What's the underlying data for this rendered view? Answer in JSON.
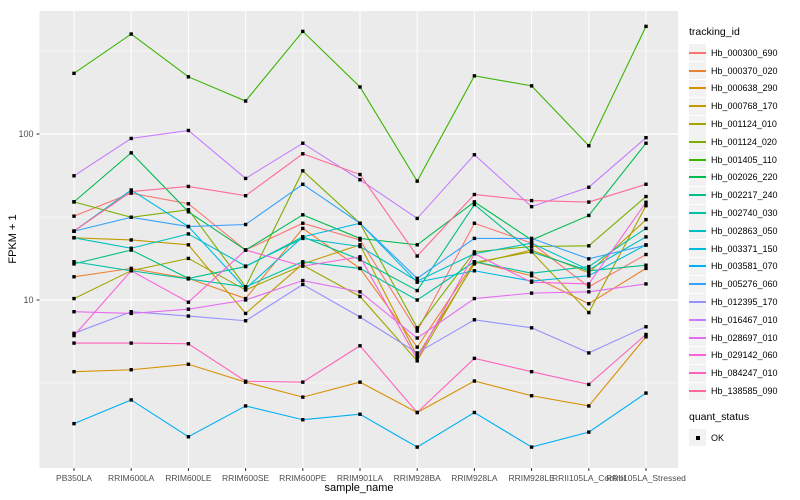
{
  "chart_data": {
    "type": "line",
    "title": "",
    "xlabel": "sample_name",
    "ylabel": "FPKM + 1",
    "y_scale": "log10",
    "ylim": [
      1,
      550
    ],
    "grid": true,
    "legend_position": "right",
    "y_ticks": [
      {
        "label": "100",
        "value": 100
      },
      {
        "label": "10",
        "value": 10
      }
    ],
    "y_minor_gridlines": [
      316.23,
      31.62,
      3.162
    ],
    "categories": [
      "PB350LA",
      "RRIM600LA",
      "RRIM600LE",
      "RRIM600SE",
      "RRIM600PE",
      "RRIM901LA",
      "RRIM928BA",
      "RRIM928LA",
      "RRIM928LE",
      "RRII105LA_Control",
      "RRII105LA_Stressed"
    ],
    "series": [
      {
        "name": "Hb_000300_690",
        "color": "#F8766D",
        "values": [
          32,
          44,
          38,
          20,
          29,
          23,
          6.5,
          29,
          22,
          12,
          18.8
        ]
      },
      {
        "name": "Hb_000370_020",
        "color": "#EA8331",
        "values": [
          13.8,
          15.5,
          13.5,
          10.2,
          27,
          15.5,
          5.2,
          17,
          14,
          9.5,
          15.5
        ]
      },
      {
        "name": "Hb_000638_290",
        "color": "#D89000",
        "values": [
          3.7,
          3.8,
          4.1,
          3.2,
          2.6,
          3.2,
          2.1,
          3.25,
          2.65,
          2.3,
          6.0
        ]
      },
      {
        "name": "Hb_000768_170",
        "color": "#C09B00",
        "values": [
          23.7,
          23,
          21.5,
          8.3,
          16.5,
          21.5,
          4.6,
          16.5,
          20,
          14.6,
          30.5
        ]
      },
      {
        "name": "Hb_001124_010",
        "color": "#A3A500",
        "values": [
          10.2,
          15,
          17.8,
          11.5,
          16.2,
          10.5,
          4.3,
          16.8,
          19.5,
          8.4,
          37
        ]
      },
      {
        "name": "Hb_001124_020",
        "color": "#7CAE00",
        "values": [
          39,
          31.5,
          35,
          12,
          60,
          29,
          6.8,
          19.5,
          21,
          21.2,
          42
        ]
      },
      {
        "name": "Hb_001405_110",
        "color": "#39B600",
        "values": [
          232,
          400,
          221,
          158,
          415,
          192,
          52,
          224,
          195,
          85,
          445
        ]
      },
      {
        "name": "Hb_002026_220",
        "color": "#00BB4E",
        "values": [
          39,
          77,
          34,
          20,
          32.6,
          23.5,
          21.5,
          39,
          23,
          32.3,
          88
        ]
      },
      {
        "name": "Hb_002217_240",
        "color": "#00C087",
        "values": [
          16.5,
          20,
          13.5,
          15.9,
          24,
          17.5,
          11.4,
          37.6,
          19.5,
          15,
          16.2
        ]
      },
      {
        "name": "Hb_002740_030",
        "color": "#00C1A3",
        "values": [
          17,
          15,
          13.4,
          12,
          17,
          15.5,
          10,
          17,
          14.5,
          15.9,
          27
        ]
      },
      {
        "name": "Hb_002863_050",
        "color": "#00BFC4",
        "values": [
          23.7,
          20.5,
          25,
          16,
          23.5,
          21,
          13,
          19,
          22,
          15.2,
          24
        ]
      },
      {
        "name": "Hb_003371_150",
        "color": "#00BAE0",
        "values": [
          26,
          46,
          27.7,
          11.7,
          24,
          29,
          12.8,
          15,
          13,
          14,
          21.5
        ]
      },
      {
        "name": "Hb_003581_070",
        "color": "#00B0F6",
        "values": [
          1.8,
          2.5,
          1.5,
          2.3,
          1.9,
          2.05,
          1.3,
          2.1,
          1.3,
          1.6,
          2.75
        ]
      },
      {
        "name": "Hb_005276_060",
        "color": "#35A2FF",
        "values": [
          26,
          31.5,
          27.7,
          28.5,
          49.8,
          29,
          13.5,
          23.5,
          23.5,
          17.7,
          21.4
        ]
      },
      {
        "name": "Hb_012395_170",
        "color": "#9590FF",
        "values": [
          6.3,
          8.5,
          8.0,
          7.5,
          12.4,
          7.9,
          4.8,
          7.6,
          6.8,
          4.8,
          6.9
        ]
      },
      {
        "name": "Hb_016467_010",
        "color": "#C77CFF",
        "values": [
          56,
          94,
          105,
          54,
          88,
          53,
          31,
          75,
          36.5,
          47.8,
          95
        ]
      },
      {
        "name": "Hb_028697_010",
        "color": "#E76BF3",
        "values": [
          8.5,
          8.3,
          8.8,
          10,
          13.1,
          11.2,
          5.9,
          10.2,
          11,
          11.2,
          12.5
        ]
      },
      {
        "name": "Hb_029142_060",
        "color": "#FA62DB",
        "values": [
          6.1,
          15,
          9.7,
          20,
          16,
          18.2,
          4.4,
          19,
          12.8,
          12.5,
          38.8
        ]
      },
      {
        "name": "Hb_084247_010",
        "color": "#FF62BC",
        "values": [
          5.5,
          5.5,
          5.45,
          3.24,
          3.2,
          5.3,
          2.1,
          4.45,
          3.7,
          3.1,
          6.2
        ]
      },
      {
        "name": "Hb_138585_090",
        "color": "#FF6A98",
        "values": [
          26,
          45,
          48.3,
          42.5,
          76,
          57,
          18.4,
          43.2,
          39.7,
          38.9,
          49.8
        ]
      }
    ],
    "legend": {
      "position": "right",
      "color_title": "tracking_id",
      "shape_title": "quant_status",
      "shape_items": [
        {
          "label": "OK",
          "shape": "square",
          "color": "#000000"
        }
      ]
    },
    "colors": {
      "panel_bg": "#EBEBEB",
      "grid": "#FFFFFF",
      "axis_text": "#4D4D4D",
      "axis_title": "#000000",
      "point": "#000000",
      "tick_mark": "#333333"
    }
  }
}
